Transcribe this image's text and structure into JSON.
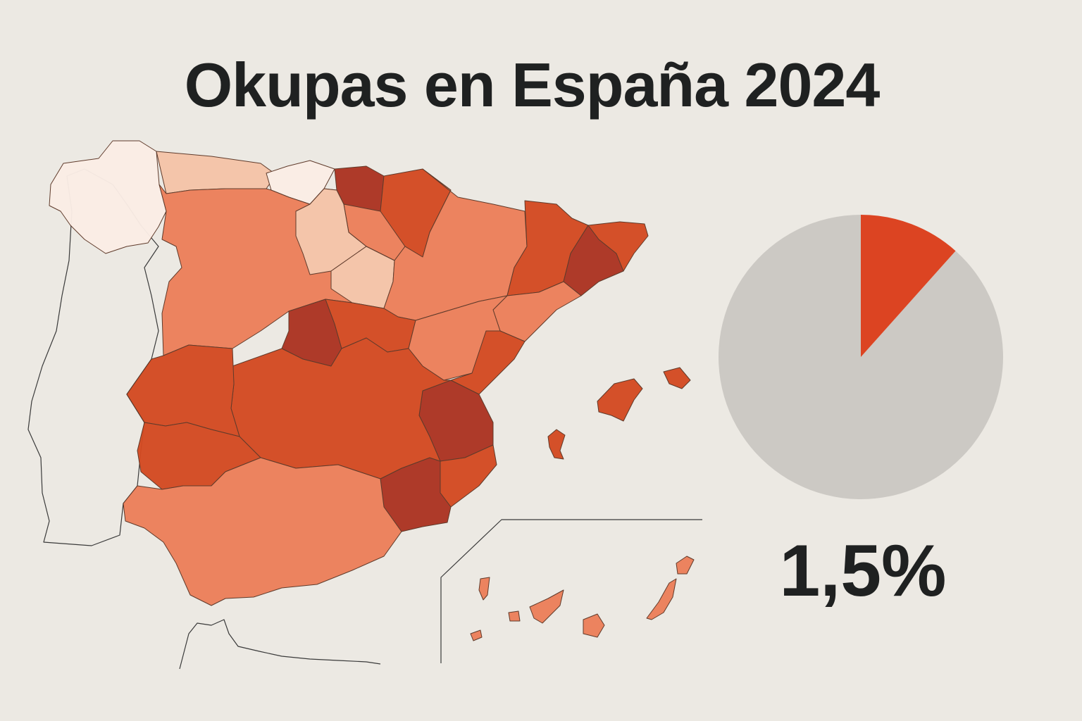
{
  "title": "Okupas en España 2024",
  "stat": "1,5%",
  "colors": {
    "background": "#ece9e3",
    "lightest": "#fbeee6",
    "light": "#f5c4a8",
    "medium": "#ec7f5a",
    "strong": "#d44a22",
    "darkest": "#ac3322",
    "pie_remainder": "#ccc9c4",
    "pie_slice": "#dc4422"
  },
  "chart_data": {
    "type": "pie",
    "values": [
      11.6,
      88.4
    ]
  }
}
